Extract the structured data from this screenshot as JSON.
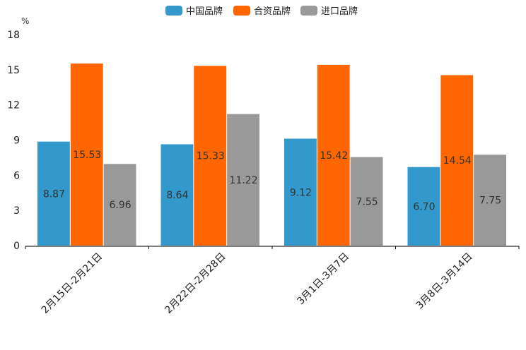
{
  "chart_data": {
    "type": "bar",
    "title": "",
    "xlabel": "",
    "ylabel": "%",
    "ylim": [
      0,
      18
    ],
    "yticks": [
      "0",
      "3",
      "6",
      "9",
      "12",
      "15",
      "18"
    ],
    "grid": false,
    "legend_position": "top-center",
    "categories": [
      "2月15日-2月21日",
      "2月22日-2月28日",
      "3月1日-3月7日",
      "3月8日-3月14日"
    ],
    "series": [
      {
        "name": "中国品牌",
        "color": "#3399cc",
        "values": [
          8.87,
          8.64,
          9.12,
          6.7
        ],
        "labels": [
          "8.87",
          "8.64",
          "9.12",
          "6.70"
        ]
      },
      {
        "name": "合资品牌",
        "color": "#ff6600",
        "values": [
          15.53,
          15.33,
          15.42,
          14.54
        ],
        "labels": [
          "15.53",
          "15.33",
          "15.42",
          "14.54"
        ]
      },
      {
        "name": "进口品牌",
        "color": "#999999",
        "values": [
          6.96,
          11.22,
          7.55,
          7.75
        ],
        "labels": [
          "6.96",
          "11.22",
          "7.55",
          "7.75"
        ]
      }
    ]
  }
}
